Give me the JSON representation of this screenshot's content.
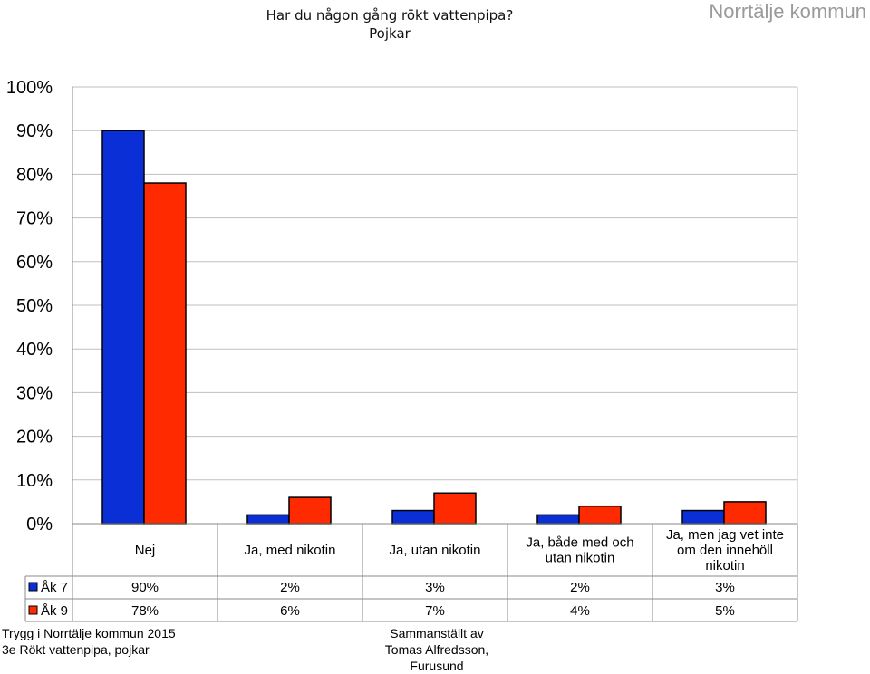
{
  "header": {
    "title_line1": "Har du någon gång rökt vattenpipa?",
    "title_line2": "Pojkar",
    "brand": "Norrtälje kommun"
  },
  "footer": {
    "left_line1": "Trygg i Norrtälje kommun 2015",
    "left_line2": "3e Rökt vattenpipa, pojkar",
    "right_line1": "Sammanställt av",
    "right_line2": "Tomas Alfredsson, Furusund"
  },
  "colors": {
    "series1": "#0a2fd6",
    "series2": "#ff2a00",
    "grid": "#bfbfbf"
  },
  "chart_data": {
    "type": "bar",
    "categories": [
      [
        "Nej"
      ],
      [
        "Ja, med nikotin"
      ],
      [
        "Ja, utan nikotin"
      ],
      [
        "Ja, både med och",
        "utan nikotin"
      ],
      [
        "Ja, men jag vet inte",
        "om den innehöll",
        "nikotin"
      ]
    ],
    "series": [
      {
        "name": "Åk 7",
        "values": [
          90,
          2,
          3,
          2,
          3
        ],
        "labels": [
          "90%",
          "2%",
          "3%",
          "2%",
          "3%"
        ]
      },
      {
        "name": "Åk 9",
        "values": [
          78,
          6,
          7,
          4,
          5
        ],
        "labels": [
          "78%",
          "6%",
          "7%",
          "4%",
          "5%"
        ]
      }
    ],
    "ylim": [
      0,
      100
    ],
    "yticks": [
      "0%",
      "10%",
      "20%",
      "30%",
      "40%",
      "50%",
      "60%",
      "70%",
      "80%",
      "90%",
      "100%"
    ],
    "grid": true,
    "legend": "data-table"
  }
}
